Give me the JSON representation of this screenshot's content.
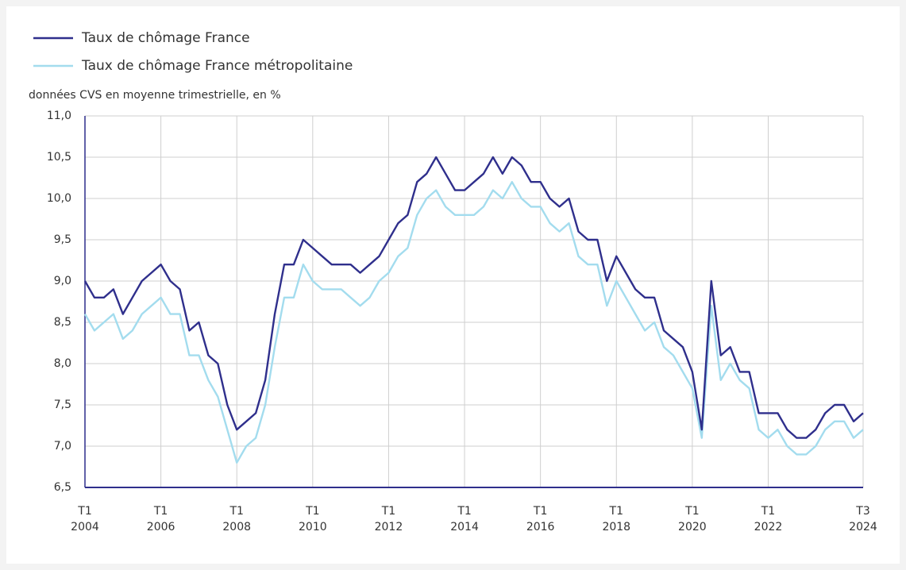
{
  "chart_data": {
    "type": "line",
    "y_axis_label": "données CVS en moyenne trimestrielle, en %",
    "categories": [
      "T1 2004",
      null,
      null,
      null,
      null,
      null,
      null,
      null,
      "T1 2006",
      null,
      null,
      null,
      null,
      null,
      null,
      null,
      "T1 2008",
      null,
      null,
      null,
      null,
      null,
      null,
      null,
      "T1 2010",
      null,
      null,
      null,
      null,
      null,
      null,
      null,
      "T1 2012",
      null,
      null,
      null,
      null,
      null,
      null,
      null,
      "T1 2014",
      null,
      null,
      null,
      null,
      null,
      null,
      null,
      "T1 2016",
      null,
      null,
      null,
      null,
      null,
      null,
      null,
      "T1 2018",
      null,
      null,
      null,
      null,
      null,
      null,
      null,
      "T1 2020",
      null,
      null,
      null,
      null,
      null,
      null,
      null,
      "T1 2022",
      null,
      null,
      null,
      null,
      null,
      null,
      null,
      null,
      null,
      "T3 2024"
    ],
    "series": [
      {
        "name": "Taux de chômage France",
        "color": "#2f2f8c",
        "values": [
          9.0,
          8.8,
          8.8,
          8.9,
          8.6,
          8.8,
          9.0,
          9.1,
          9.2,
          9.0,
          8.9,
          8.4,
          8.5,
          8.1,
          8.0,
          7.5,
          7.2,
          7.3,
          7.4,
          7.8,
          8.6,
          9.2,
          9.2,
          9.5,
          9.4,
          9.3,
          9.2,
          9.2,
          9.2,
          9.1,
          9.2,
          9.3,
          9.5,
          9.7,
          9.8,
          10.2,
          10.3,
          10.5,
          10.3,
          10.1,
          10.1,
          10.2,
          10.3,
          10.5,
          10.3,
          10.5,
          10.4,
          10.2,
          10.2,
          10.0,
          9.9,
          10.0,
          9.6,
          9.5,
          9.5,
          9.0,
          9.3,
          9.1,
          8.9,
          8.8,
          8.8,
          8.4,
          8.3,
          8.2,
          7.9,
          7.2,
          9.0,
          8.1,
          8.2,
          7.9,
          7.9,
          7.4,
          7.4,
          7.4,
          7.2,
          7.1,
          7.1,
          7.2,
          7.4,
          7.5,
          7.5,
          7.3,
          7.4
        ]
      },
      {
        "name": "Taux de chômage France métropolitaine",
        "color": "#a3dcee",
        "values": [
          8.6,
          8.4,
          8.5,
          8.6,
          8.3,
          8.4,
          8.6,
          8.7,
          8.8,
          8.6,
          8.6,
          8.1,
          8.1,
          7.8,
          7.6,
          7.2,
          6.8,
          7.0,
          7.1,
          7.5,
          8.2,
          8.8,
          8.8,
          9.2,
          9.0,
          8.9,
          8.9,
          8.9,
          8.8,
          8.7,
          8.8,
          9.0,
          9.1,
          9.3,
          9.4,
          9.8,
          10.0,
          10.1,
          9.9,
          9.8,
          9.8,
          9.8,
          9.9,
          10.1,
          10.0,
          10.2,
          10.0,
          9.9,
          9.9,
          9.7,
          9.6,
          9.7,
          9.3,
          9.2,
          9.2,
          8.7,
          9.0,
          8.8,
          8.6,
          8.4,
          8.5,
          8.2,
          8.1,
          7.9,
          7.7,
          7.1,
          8.7,
          7.8,
          8.0,
          7.8,
          7.7,
          7.2,
          7.1,
          7.2,
          7.0,
          6.9,
          6.9,
          7.0,
          7.2,
          7.3,
          7.3,
          7.1,
          7.2
        ]
      }
    ],
    "ylim": [
      6.5,
      11.0
    ],
    "yticks": [
      {
        "value": 6.5,
        "label": "6,5"
      },
      {
        "value": 7.0,
        "label": "7,0"
      },
      {
        "value": 7.5,
        "label": "7,5"
      },
      {
        "value": 8.0,
        "label": "8,0"
      },
      {
        "value": 8.5,
        "label": "8,5"
      },
      {
        "value": 9.0,
        "label": "9,0"
      },
      {
        "value": 9.5,
        "label": "9,5"
      },
      {
        "value": 10.0,
        "label": "10,0"
      },
      {
        "value": 10.5,
        "label": "10,5"
      },
      {
        "value": 11.0,
        "label": "11,0"
      }
    ],
    "grid": true
  }
}
